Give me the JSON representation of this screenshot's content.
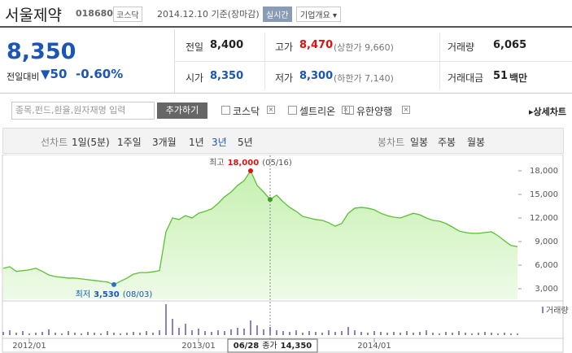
{
  "header": {
    "name": "서울제약",
    "code": "018680",
    "market": "코스닥",
    "date": "2014.12.10 기준(장마감)",
    "realtime": "실시간",
    "company": "기업개요"
  },
  "price": {
    "current": "8,350",
    "change_label": "전일대비",
    "change": "50",
    "change_pct": "-0.60%"
  },
  "stats": [
    {
      "label": "전일",
      "value": "8,400"
    },
    {
      "label": "고가",
      "value": "8,470",
      "note": "(상한가 9,660)"
    },
    {
      "label": "거래량",
      "value": "6,065"
    },
    {
      "label": "시가",
      "value": "8,350"
    },
    {
      "label": "저가",
      "value": "8,300",
      "note": "(하한가 7,140)"
    },
    {
      "label": "거래대금",
      "value": "51",
      "unit": "백만"
    }
  ],
  "toolbar": {
    "placeholder": "종목,펀드,환율,원자재명 입력",
    "add": "추가하기",
    "compare": [
      "코스닥",
      "셀트리온",
      "유한양행"
    ],
    "detail": "상세차트"
  },
  "tabs": {
    "line_label": "선차트",
    "line_items": [
      "1일(5분)",
      "1주일",
      "3개월",
      "1년",
      "3년",
      "5년"
    ],
    "candle_label": "봉차트",
    "candle_items": [
      "일봉",
      "주봉",
      "월봉"
    ]
  },
  "chart_data": {
    "type": "line",
    "categories": [
      null,
      null,
      null,
      null,
      "2012/01",
      null,
      null,
      null,
      null,
      null,
      null,
      null,
      null,
      null,
      null,
      null,
      null,
      null,
      null,
      null,
      null,
      null,
      null,
      null,
      null,
      null,
      null,
      null,
      null,
      null,
      "2013/01",
      null,
      null,
      null,
      null,
      null,
      null,
      null,
      null,
      null,
      null,
      null,
      null,
      null,
      null,
      null,
      null,
      null,
      null,
      null,
      null,
      null,
      null,
      null,
      null,
      null,
      null,
      "2014/01",
      null,
      null,
      null,
      null,
      null,
      null,
      null,
      null,
      null,
      null,
      null,
      null,
      null,
      null,
      null,
      null,
      null,
      null,
      null,
      null,
      null,
      null
    ],
    "series": [
      {
        "name": "종가",
        "color": "#5cbf35",
        "values": [
          5600,
          5800,
          5200,
          5300,
          5400,
          5600,
          5200,
          4750,
          4550,
          4450,
          4350,
          4350,
          4250,
          4150,
          4050,
          3950,
          3850,
          3530,
          3950,
          4350,
          4850,
          5050,
          5050,
          5150,
          5300,
          10250,
          12000,
          11800,
          12300,
          12000,
          12600,
          12850,
          13150,
          13850,
          14700,
          15300,
          16150,
          16750,
          18000,
          16150,
          15300,
          14350,
          14900,
          14050,
          13350,
          12850,
          12200,
          12000,
          11800,
          11700,
          11400,
          10950,
          11300,
          12600,
          13250,
          13350,
          13250,
          13050,
          12600,
          12300,
          12100,
          12000,
          12300,
          12600,
          12400,
          12000,
          11700,
          11600,
          11300,
          10850,
          10350,
          10150,
          10050,
          10050,
          10150,
          10250,
          9750,
          9100,
          8500,
          8350
        ]
      }
    ],
    "volume": {
      "name": "거래량",
      "color": "#8a80c8",
      "ylim": [
        0,
        40
      ],
      "values": [
        4,
        6,
        3,
        5,
        2,
        3,
        4,
        7,
        3,
        2,
        5,
        3,
        2,
        4,
        3,
        2,
        5,
        3,
        2,
        3,
        4,
        3,
        5,
        3,
        6,
        38,
        20,
        9,
        14,
        6,
        8,
        5,
        4,
        6,
        5,
        7,
        9,
        8,
        18,
        12,
        7,
        10,
        6,
        5,
        4,
        6,
        3,
        5,
        4,
        3,
        6,
        4,
        5,
        10,
        6,
        4,
        3,
        5,
        4,
        3,
        4,
        3,
        5,
        3,
        4,
        6,
        3,
        2,
        4,
        3,
        5,
        3,
        2,
        3,
        4,
        3,
        2,
        3,
        2,
        2
      ]
    },
    "ylim": [
      1650,
      19350
    ],
    "yticks": [
      {
        "value": 3000,
        "label": "3,000"
      },
      {
        "value": 6000,
        "label": "6,000"
      },
      {
        "value": 9000,
        "label": "9,000"
      },
      {
        "value": 12000,
        "label": "12,000"
      },
      {
        "value": 15000,
        "label": "15,000"
      },
      {
        "value": 18000,
        "label": "18,000"
      }
    ],
    "grid": false,
    "annotations": {
      "high": {
        "label": "최고",
        "value": "18,000",
        "date": "(05/16)"
      },
      "low": {
        "label": "최저",
        "value": "3,530",
        "date": "(08/03)"
      }
    },
    "cursor": {
      "date": "06/28",
      "label": "종가",
      "value": "14,350"
    }
  }
}
